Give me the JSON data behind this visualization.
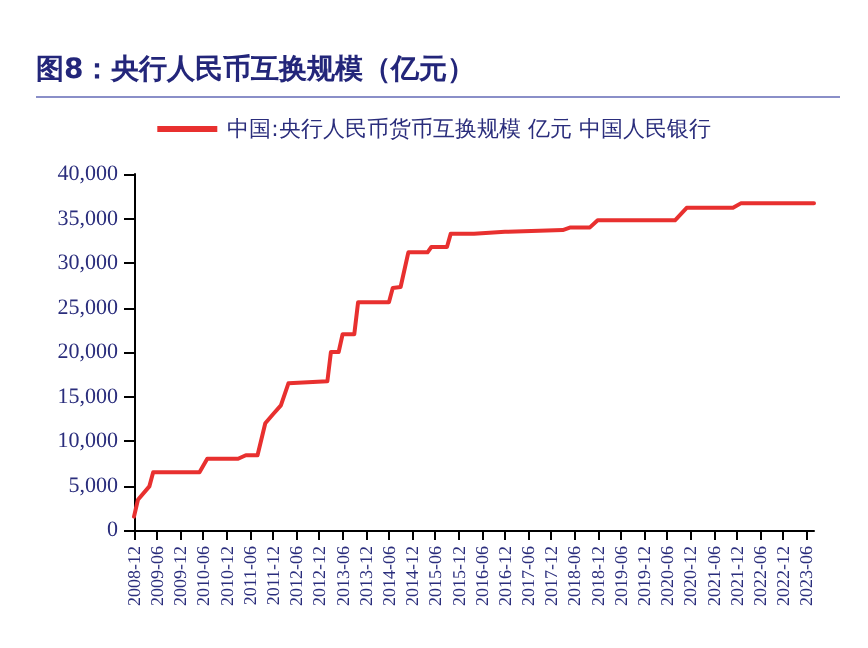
{
  "chart_data": {
    "type": "line",
    "title": "图8：央行人民币互换规模（亿元）",
    "x": [
      "2008-12",
      "2009-01",
      "2009-04",
      "2009-05",
      "2010-05",
      "2010-07",
      "2011-03",
      "2011-05",
      "2011-08",
      "2011-10",
      "2011-12",
      "2012-02",
      "2012-04",
      "2013-02",
      "2013-03",
      "2013-05",
      "2013-06",
      "2013-09",
      "2013-10",
      "2014-06",
      "2014-07",
      "2014-09",
      "2014-11",
      "2014-12",
      "2015-04",
      "2015-05",
      "2015-09",
      "2015-10",
      "2016-04",
      "2016-12",
      "2018-03",
      "2018-05",
      "2018-10",
      "2018-12",
      "2020-08",
      "2020-11",
      "2021-11",
      "2022-01",
      "2023-08"
    ],
    "series": [
      {
        "name": "中国:央行人民币货币互换规模 亿元 中国人民银行",
        "color": "#e8302f",
        "values": [
          1500,
          3400,
          4900,
          6500,
          6500,
          8000,
          8000,
          8400,
          8400,
          12000,
          13000,
          14000,
          16500,
          16700,
          20000,
          20000,
          22000,
          22000,
          25600,
          25600,
          27200,
          27300,
          31200,
          31200,
          31200,
          31800,
          31800,
          33300,
          33300,
          33500,
          33700,
          34000,
          34000,
          34800,
          34800,
          36200,
          36200,
          36700,
          36700
        ]
      }
    ],
    "xlim": [
      "2008-12",
      "2023-08"
    ],
    "xticks": [
      "2008-12",
      "2009-06",
      "2009-12",
      "2010-06",
      "2010-12",
      "2011-06",
      "2011-12",
      "2012-06",
      "2012-12",
      "2013-06",
      "2013-12",
      "2014-06",
      "2014-12",
      "2015-06",
      "2015-12",
      "2016-06",
      "2016-12",
      "2017-06",
      "2017-12",
      "2018-06",
      "2018-12",
      "2019-06",
      "2019-12",
      "2020-06",
      "2020-12",
      "2021-06",
      "2021-12",
      "2022-06",
      "2022-12",
      "2023-06"
    ],
    "ylim": [
      0,
      40000
    ],
    "yticks": [
      0,
      {
        "value": 5000,
        "label": "5,000"
      },
      {
        "value": 10000,
        "label": "10,000"
      },
      {
        "value": 15000,
        "label": "15,000"
      },
      {
        "value": 20000,
        "label": "20,000"
      },
      {
        "value": 25000,
        "label": "25,000"
      },
      {
        "value": 30000,
        "label": "30,000"
      },
      {
        "value": 35000,
        "label": "35,000"
      },
      {
        "value": 40000,
        "label": "40,000"
      }
    ],
    "grid": false,
    "legend": "top",
    "marker": "none",
    "line_style": "solid"
  }
}
